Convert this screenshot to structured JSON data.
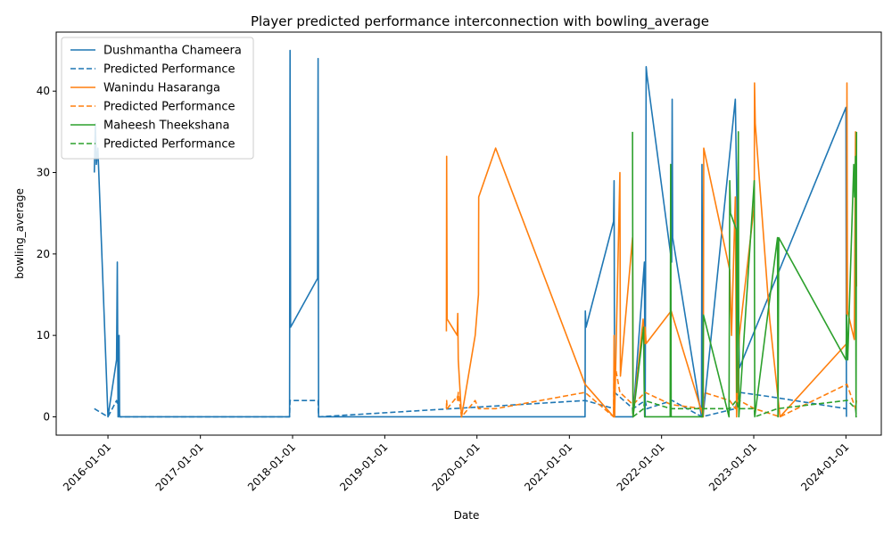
{
  "chart_data": {
    "type": "line",
    "title": "Player predicted performance interconnection with bowling_average",
    "xlabel": "Date",
    "ylabel": "bowling_average",
    "x_ticks": [
      "2016-01-01",
      "2017-01-01",
      "2018-01-01",
      "2019-01-01",
      "2020-01-01",
      "2021-01-01",
      "2022-01-01",
      "2023-01-01",
      "2024-01-01"
    ],
    "y_ticks": [
      0,
      10,
      20,
      30,
      40
    ],
    "xlim": [
      "2015-06-10",
      "2024-05-20"
    ],
    "ylim": [
      -2.25,
      47.25
    ],
    "grid": false,
    "legend_position": "top-left",
    "series": [
      {
        "name": "Dushmantha Chameera",
        "color": "#1f77b4",
        "dash": "solid",
        "points": [
          [
            "2015-11-08",
            30
          ],
          [
            "2015-11-12",
            36
          ],
          [
            "2015-11-16",
            31
          ],
          [
            "2015-11-22",
            33
          ],
          [
            "2016-01-01",
            0
          ],
          [
            "2016-02-04",
            7
          ],
          [
            "2016-02-07",
            19
          ],
          [
            "2016-02-10",
            0
          ],
          [
            "2016-02-14",
            10
          ],
          [
            "2016-02-16",
            0
          ],
          [
            "2017-12-20",
            0
          ],
          [
            "2017-12-22",
            45
          ],
          [
            "2017-12-24",
            11
          ],
          [
            "2018-04-10",
            17
          ],
          [
            "2018-04-12",
            44
          ],
          [
            "2018-04-14",
            0
          ],
          [
            "2021-03-04",
            0
          ],
          [
            "2021-03-05",
            13
          ],
          [
            "2021-03-08",
            11
          ],
          [
            "2021-06-25",
            24
          ],
          [
            "2021-06-27",
            29
          ],
          [
            "2021-06-29",
            0
          ],
          [
            "2021-09-10",
            0
          ],
          [
            "2021-10-25",
            19
          ],
          [
            "2021-10-28",
            0
          ],
          [
            "2021-11-01",
            43
          ],
          [
            "2021-11-04",
            42
          ],
          [
            "2022-02-10",
            19
          ],
          [
            "2022-02-12",
            39
          ],
          [
            "2022-02-14",
            22
          ],
          [
            "2022-06-08",
            0
          ],
          [
            "2022-06-10",
            31
          ],
          [
            "2022-06-14",
            0
          ],
          [
            "2022-10-20",
            39
          ],
          [
            "2022-11-05",
            6
          ],
          [
            "2024-01-01",
            38
          ],
          [
            "2024-01-03",
            0
          ]
        ]
      },
      {
        "name": "Predicted Performance",
        "color": "#1f77b4",
        "dash": "dashed",
        "points": [
          [
            "2015-11-08",
            1
          ],
          [
            "2016-01-01",
            0
          ],
          [
            "2016-02-04",
            2
          ],
          [
            "2016-02-14",
            1
          ],
          [
            "2016-02-16",
            0
          ],
          [
            "2017-12-20",
            0
          ],
          [
            "2017-12-22",
            2
          ],
          [
            "2018-04-12",
            2
          ],
          [
            "2018-04-14",
            0
          ],
          [
            "2021-03-05",
            2
          ],
          [
            "2021-06-27",
            1
          ],
          [
            "2021-06-29",
            3
          ],
          [
            "2021-09-10",
            1
          ],
          [
            "2021-10-28",
            2
          ],
          [
            "2021-11-04",
            1
          ],
          [
            "2022-02-12",
            2
          ],
          [
            "2022-06-10",
            0
          ],
          [
            "2022-10-20",
            1
          ],
          [
            "2022-11-05",
            3
          ],
          [
            "2023-03-01",
            2.5
          ],
          [
            "2024-01-01",
            1
          ],
          [
            "2024-01-03",
            1
          ]
        ]
      },
      {
        "name": "Wanindu Hasaranga",
        "color": "#ff7f0e",
        "dash": "solid",
        "points": [
          [
            "2019-09-02",
            10.5
          ],
          [
            "2019-09-03",
            32
          ],
          [
            "2019-09-05",
            12
          ],
          [
            "2019-10-15",
            10
          ],
          [
            "2019-10-17",
            12.7
          ],
          [
            "2019-10-19",
            7
          ],
          [
            "2019-11-01",
            0
          ],
          [
            "2019-12-25",
            10
          ],
          [
            "2020-01-07",
            15
          ],
          [
            "2020-01-08",
            27
          ],
          [
            "2020-03-15",
            33
          ],
          [
            "2021-03-04",
            4
          ],
          [
            "2021-06-25",
            0
          ],
          [
            "2021-06-27",
            10
          ],
          [
            "2021-06-29",
            0
          ],
          [
            "2021-07-20",
            30
          ],
          [
            "2021-07-22",
            5
          ],
          [
            "2021-09-08",
            22
          ],
          [
            "2021-09-10",
            0
          ],
          [
            "2021-10-20",
            12
          ],
          [
            "2021-10-26",
            9
          ],
          [
            "2021-10-28",
            11
          ],
          [
            "2021-11-01",
            9
          ],
          [
            "2022-02-08",
            13
          ],
          [
            "2022-06-15",
            0
          ],
          [
            "2022-06-17",
            33
          ],
          [
            "2022-09-28",
            18
          ],
          [
            "2022-10-05",
            10
          ],
          [
            "2022-10-20",
            27
          ],
          [
            "2022-10-25",
            0
          ],
          [
            "2022-11-05",
            10
          ],
          [
            "2023-01-03",
            26
          ],
          [
            "2023-01-04",
            41
          ],
          [
            "2023-01-07",
            36
          ],
          [
            "2023-03-05",
            12
          ],
          [
            "2023-04-15",
            0
          ],
          [
            "2024-01-04",
            9
          ],
          [
            "2024-01-05",
            41
          ],
          [
            "2024-01-07",
            13
          ],
          [
            "2024-02-03",
            9.5
          ],
          [
            "2024-02-08",
            35
          ],
          [
            "2024-02-12",
            16
          ]
        ]
      },
      {
        "name": "Predicted Performance",
        "color": "#ff7f0e",
        "dash": "dashed",
        "points": [
          [
            "2019-09-02",
            1
          ],
          [
            "2019-09-03",
            2
          ],
          [
            "2019-09-05",
            1
          ],
          [
            "2019-10-15",
            2.5
          ],
          [
            "2019-10-17",
            2
          ],
          [
            "2019-10-19",
            3
          ],
          [
            "2019-11-01",
            0
          ],
          [
            "2019-12-25",
            2
          ],
          [
            "2020-01-07",
            1
          ],
          [
            "2020-03-15",
            1
          ],
          [
            "2021-03-04",
            3
          ],
          [
            "2021-06-25",
            0
          ],
          [
            "2021-06-27",
            7
          ],
          [
            "2021-07-20",
            3
          ],
          [
            "2021-09-10",
            1.5
          ],
          [
            "2021-10-28",
            3
          ],
          [
            "2022-02-08",
            1.5
          ],
          [
            "2022-06-15",
            1
          ],
          [
            "2022-06-17",
            3
          ],
          [
            "2022-09-28",
            2
          ],
          [
            "2022-10-20",
            1
          ],
          [
            "2022-11-05",
            2
          ],
          [
            "2023-01-04",
            1
          ],
          [
            "2023-04-15",
            0
          ],
          [
            "2024-01-05",
            4
          ],
          [
            "2024-02-08",
            1
          ],
          [
            "2024-02-12",
            2
          ]
        ]
      },
      {
        "name": "Maheesh Theekshana",
        "color": "#2ca02c",
        "dash": "solid",
        "points": [
          [
            "2021-09-08",
            35
          ],
          [
            "2021-09-10",
            0
          ],
          [
            "2021-10-22",
            11
          ],
          [
            "2021-10-24",
            4
          ],
          [
            "2021-10-26",
            0
          ],
          [
            "2022-02-04",
            0
          ],
          [
            "2022-02-06",
            31
          ],
          [
            "2022-02-08",
            0
          ],
          [
            "2022-06-13",
            0
          ],
          [
            "2022-06-16",
            12.5
          ],
          [
            "2022-09-25",
            0
          ],
          [
            "2022-09-28",
            29
          ],
          [
            "2022-10-01",
            25
          ],
          [
            "2022-10-24",
            23
          ],
          [
            "2022-10-26",
            3
          ],
          [
            "2022-11-01",
            35
          ],
          [
            "2022-11-03",
            0
          ],
          [
            "2023-01-03",
            29
          ],
          [
            "2023-01-05",
            0
          ],
          [
            "2023-04-05",
            22
          ],
          [
            "2023-04-07",
            0
          ],
          [
            "2023-04-10",
            22
          ],
          [
            "2024-01-01",
            7
          ],
          [
            "2024-01-04",
            12.5
          ],
          [
            "2024-01-08",
            7
          ],
          [
            "2024-02-01",
            31
          ],
          [
            "2024-02-04",
            27
          ],
          [
            "2024-02-08",
            32
          ],
          [
            "2024-02-10",
            0
          ],
          [
            "2024-02-12",
            35
          ]
        ]
      },
      {
        "name": "Predicted Performance",
        "color": "#2ca02c",
        "dash": "dashed",
        "points": [
          [
            "2021-09-08",
            1
          ],
          [
            "2021-09-10",
            0
          ],
          [
            "2021-10-22",
            1
          ],
          [
            "2021-10-26",
            2
          ],
          [
            "2022-02-06",
            1
          ],
          [
            "2022-06-16",
            1
          ],
          [
            "2022-09-28",
            1
          ],
          [
            "2022-10-24",
            2
          ],
          [
            "2022-11-01",
            1
          ],
          [
            "2023-01-03",
            1
          ],
          [
            "2023-01-05",
            0
          ],
          [
            "2023-04-05",
            1
          ],
          [
            "2024-01-01",
            2
          ],
          [
            "2024-01-08",
            2
          ],
          [
            "2024-02-08",
            1
          ],
          [
            "2024-02-12",
            0
          ]
        ]
      }
    ]
  }
}
